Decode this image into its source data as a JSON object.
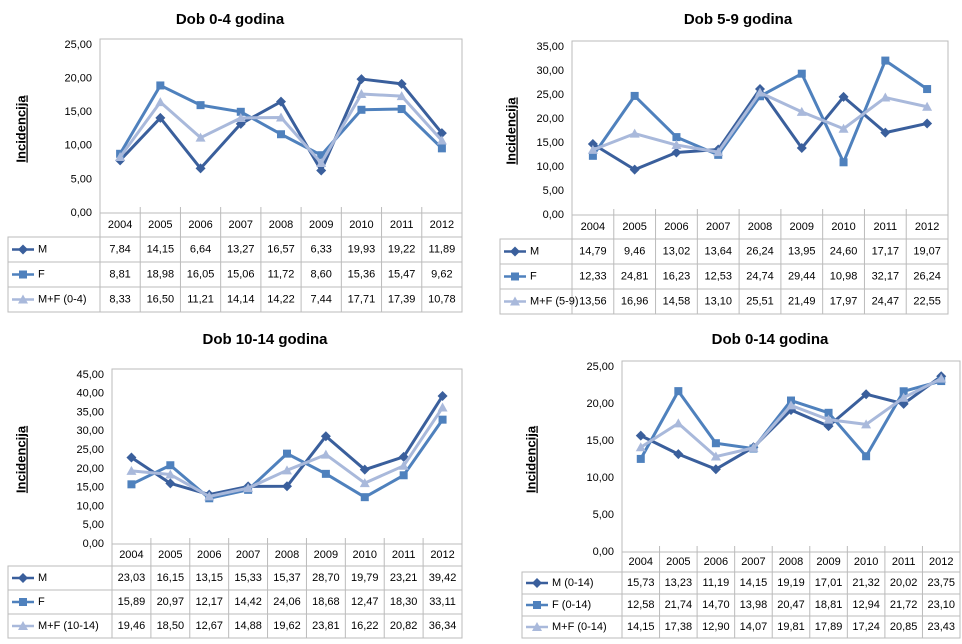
{
  "chart_data": [
    {
      "type": "line",
      "title": "Dob 0-4 godina",
      "ylabel": "Incidencija",
      "grid": false,
      "categories": [
        "2004",
        "2005",
        "2006",
        "2007",
        "2008",
        "2009",
        "2010",
        "2011",
        "2012"
      ],
      "ylim": [
        0,
        25
      ],
      "yticks": [
        {
          "value": 0,
          "label": "0,00"
        },
        {
          "value": 5,
          "label": "5,00"
        },
        {
          "value": 10,
          "label": "10,00"
        },
        {
          "value": 15,
          "label": "15,00"
        },
        {
          "value": 20,
          "label": "20,00"
        },
        {
          "value": 25,
          "label": "25,00"
        }
      ],
      "series": [
        {
          "name": "M",
          "color": "#3a5f9c",
          "marker": "diamond",
          "values": [
            7.84,
            14.15,
            6.64,
            13.27,
            16.57,
            6.33,
            19.93,
            19.22,
            11.89
          ],
          "value_labels": [
            "7,84",
            "14,15",
            "6,64",
            "13,27",
            "16,57",
            "6,33",
            "19,93",
            "19,22",
            "11,89"
          ]
        },
        {
          "name": "F",
          "color": "#4f81bd",
          "marker": "square",
          "values": [
            8.81,
            18.98,
            16.05,
            15.06,
            11.72,
            8.6,
            15.36,
            15.47,
            9.62
          ],
          "value_labels": [
            "8,81",
            "18,98",
            "16,05",
            "15,06",
            "11,72",
            "8,60",
            "15,36",
            "15,47",
            "9,62"
          ]
        },
        {
          "name": "M+F (0-4)",
          "color": "#a9b9db",
          "marker": "triangle",
          "values": [
            8.33,
            16.5,
            11.21,
            14.14,
            14.22,
            7.44,
            17.71,
            17.39,
            10.78
          ],
          "value_labels": [
            "8,33",
            "16,50",
            "11,21",
            "14,14",
            "14,22",
            "7,44",
            "17,71",
            "17,39",
            "10,78"
          ]
        }
      ]
    },
    {
      "type": "line",
      "title": "Dob 5-9 godina",
      "ylabel": "Incidencija",
      "grid": false,
      "categories": [
        "2004",
        "2005",
        "2006",
        "2007",
        "2008",
        "2009",
        "2010",
        "2011",
        "2012"
      ],
      "ylim": [
        0,
        35
      ],
      "yticks": [
        {
          "value": 0,
          "label": "0,00"
        },
        {
          "value": 5,
          "label": "5,00"
        },
        {
          "value": 10,
          "label": "10,00"
        },
        {
          "value": 15,
          "label": "15,00"
        },
        {
          "value": 20,
          "label": "20,00"
        },
        {
          "value": 25,
          "label": "25,00"
        },
        {
          "value": 30,
          "label": "30,00"
        },
        {
          "value": 35,
          "label": "35,00"
        }
      ],
      "series": [
        {
          "name": "M",
          "color": "#3a5f9c",
          "marker": "diamond",
          "values": [
            14.79,
            9.46,
            13.02,
            13.64,
            26.24,
            13.95,
            24.6,
            17.17,
            19.07
          ],
          "value_labels": [
            "14,79",
            "9,46",
            "13,02",
            "13,64",
            "26,24",
            "13,95",
            "24,60",
            "17,17",
            "19,07"
          ]
        },
        {
          "name": "F",
          "color": "#4f81bd",
          "marker": "square",
          "values": [
            12.33,
            24.81,
            16.23,
            12.53,
            24.74,
            29.44,
            10.98,
            32.17,
            26.24
          ],
          "value_labels": [
            "12,33",
            "24,81",
            "16,23",
            "12,53",
            "24,74",
            "29,44",
            "10,98",
            "32,17",
            "26,24"
          ]
        },
        {
          "name": "M+F (5-9)",
          "color": "#a9b9db",
          "marker": "triangle",
          "values": [
            13.56,
            16.96,
            14.58,
            13.1,
            25.51,
            21.49,
            17.97,
            24.47,
            22.55
          ],
          "value_labels": [
            "13,56",
            "16,96",
            "14,58",
            "13,10",
            "25,51",
            "21,49",
            "17,97",
            "24,47",
            "22,55"
          ]
        }
      ]
    },
    {
      "type": "line",
      "title": "Dob 10-14 godina",
      "ylabel": "Incidencija",
      "grid": false,
      "categories": [
        "2004",
        "2005",
        "2006",
        "2007",
        "2008",
        "2009",
        "2010",
        "2011",
        "2012"
      ],
      "ylim": [
        0,
        45
      ],
      "yticks": [
        {
          "value": 0,
          "label": "0,00"
        },
        {
          "value": 5,
          "label": "5,00"
        },
        {
          "value": 10,
          "label": "10,00"
        },
        {
          "value": 15,
          "label": "15,00"
        },
        {
          "value": 20,
          "label": "20,00"
        },
        {
          "value": 25,
          "label": "25,00"
        },
        {
          "value": 30,
          "label": "30,00"
        },
        {
          "value": 35,
          "label": "35,00"
        },
        {
          "value": 40,
          "label": "40,00"
        },
        {
          "value": 45,
          "label": "45,00"
        }
      ],
      "series": [
        {
          "name": "M",
          "color": "#3a5f9c",
          "marker": "diamond",
          "values": [
            23.03,
            16.15,
            13.15,
            15.33,
            15.37,
            28.7,
            19.79,
            23.21,
            39.42
          ],
          "value_labels": [
            "23,03",
            "16,15",
            "13,15",
            "15,33",
            "15,37",
            "28,70",
            "19,79",
            "23,21",
            "39,42"
          ]
        },
        {
          "name": "F",
          "color": "#4f81bd",
          "marker": "square",
          "values": [
            15.89,
            20.97,
            12.17,
            14.42,
            24.06,
            18.68,
            12.47,
            18.3,
            33.11
          ],
          "value_labels": [
            "15,89",
            "20,97",
            "12,17",
            "14,42",
            "24,06",
            "18,68",
            "12,47",
            "18,30",
            "33,11"
          ]
        },
        {
          "name": "M+F (10-14)",
          "color": "#a9b9db",
          "marker": "triangle",
          "values": [
            19.46,
            18.5,
            12.67,
            14.88,
            19.62,
            23.81,
            16.22,
            20.82,
            36.34
          ],
          "value_labels": [
            "19,46",
            "18,50",
            "12,67",
            "14,88",
            "19,62",
            "23,81",
            "16,22",
            "20,82",
            "36,34"
          ]
        }
      ]
    },
    {
      "type": "line",
      "title": "Dob 0-14 godina",
      "ylabel": "Incidencija",
      "grid": false,
      "categories": [
        "2004",
        "2005",
        "2006",
        "2007",
        "2008",
        "2009",
        "2010",
        "2011",
        "2012"
      ],
      "ylim": [
        0,
        25
      ],
      "yticks": [
        {
          "value": 0,
          "label": "0,00"
        },
        {
          "value": 5,
          "label": "5,00"
        },
        {
          "value": 10,
          "label": "10,00"
        },
        {
          "value": 15,
          "label": "15,00"
        },
        {
          "value": 20,
          "label": "20,00"
        },
        {
          "value": 25,
          "label": "25,00"
        }
      ],
      "series": [
        {
          "name": "M (0-14)",
          "color": "#3a5f9c",
          "marker": "diamond",
          "values": [
            15.73,
            13.23,
            11.19,
            14.15,
            19.19,
            17.01,
            21.32,
            20.02,
            23.75
          ],
          "value_labels": [
            "15,73",
            "13,23",
            "11,19",
            "14,15",
            "19,19",
            "17,01",
            "21,32",
            "20,02",
            "23,75"
          ]
        },
        {
          "name": "F (0-14)",
          "color": "#4f81bd",
          "marker": "square",
          "values": [
            12.58,
            21.74,
            14.7,
            13.98,
            20.47,
            18.81,
            12.94,
            21.72,
            23.1
          ],
          "value_labels": [
            "12,58",
            "21,74",
            "14,70",
            "13,98",
            "20,47",
            "18,81",
            "12,94",
            "21,72",
            "23,10"
          ]
        },
        {
          "name": "M+F (0-14)",
          "color": "#a9b9db",
          "marker": "triangle",
          "values": [
            14.15,
            17.38,
            12.9,
            14.07,
            19.81,
            17.89,
            17.24,
            20.85,
            23.43
          ],
          "value_labels": [
            "14,15",
            "17,38",
            "12,90",
            "14,07",
            "19,81",
            "17,89",
            "17,24",
            "20,85",
            "23,43"
          ]
        }
      ]
    }
  ]
}
